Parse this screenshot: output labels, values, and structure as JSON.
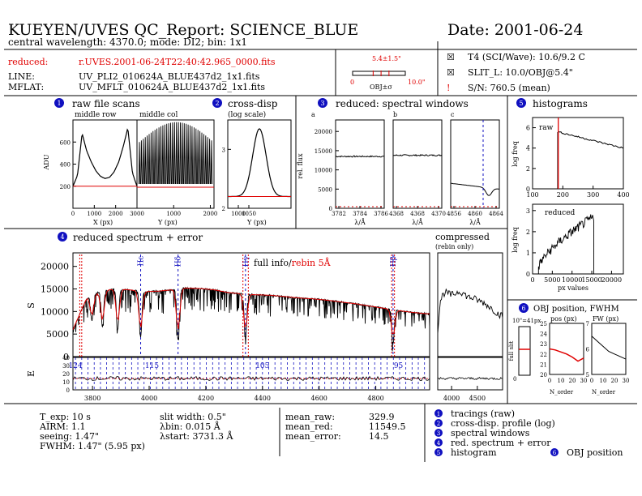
{
  "header": {
    "title": "KUEYEN/UVES QC_Report: SCIENCE_BLUE",
    "date": "Date: 2001-06-24",
    "subtitle": "central wavelength: 4370.0; mode: DI2; bin: 1x1"
  },
  "files": {
    "reduced_label": "reduced:",
    "reduced_value": "r.UVES.2001-06-24T22:40:42.965_0000.fits",
    "line_label": "LINE:",
    "line_value": "UV_PLI2_010624A_BLUE437d2_1x1.fits",
    "mflat_label": "MFLAT:",
    "mflat_value": "UV_MFLT_010624A_BLUE437d2_1x1.fits"
  },
  "slit_box": {
    "top": "5.4±1.5\"",
    "left": "0",
    "right": "10.0\"",
    "bottom": "OBJ±σ",
    "obj_position_fraction": 0.54,
    "obj_sigma_fraction": 0.15
  },
  "status": [
    {
      "mark": "☒",
      "text": "T4 (SCI/Wave): 10.6/9.2 C"
    },
    {
      "mark": "☒",
      "text": "SLIT_L: 10.0/OBJ@5.4\""
    },
    {
      "mark": "!",
      "text": "S/N: 760.5 (mean)"
    }
  ],
  "panels": {
    "p1": {
      "num": "1",
      "title": "raw file scans",
      "sub1": "middle row",
      "sub2": "middle col",
      "ylabel": "ADU",
      "xlabel1": "X (px)",
      "xlabel2": "Y (px)"
    },
    "p2": {
      "num": "2",
      "title": "cross-disp",
      "sub": "(log scale)",
      "xlabel": "Y (px)"
    },
    "p3": {
      "num": "3",
      "title": "reduced: spectral windows",
      "ylabel": "rel. flux",
      "xlabel": "λ/Å",
      "windows": [
        "a",
        "b",
        "c"
      ]
    },
    "p4": {
      "num": "4",
      "title": "reduced spectrum + error",
      "annotation_black": "full info/",
      "annotation_red": "rebin 5Å",
      "ylabel_top": "S",
      "ylabel_bottom": "E",
      "compressed": "compressed",
      "rebin_only": "(rebin only)"
    },
    "p5": {
      "num": "5",
      "title": "histograms",
      "raw_label": "raw",
      "reduced_label": "reduced",
      "ylabel": "log freq",
      "xlabel": "px values"
    },
    "p6": {
      "num": "6",
      "title": "OBJ position, FWHM",
      "pos_label": "pos (px)",
      "fw_label": "FW (px)",
      "full_slit": "full slit",
      "scale": "10\"=41px",
      "xlabel": "N_order"
    }
  },
  "bottom": {
    "col1": [
      "T_exp:  10 s",
      "AIRM:  1.1",
      "seeing: 1.47\"",
      "FWHM:  1.47\" (5.95 px)"
    ],
    "col2": [
      "slit width: 0.5\"",
      "λbin: 0.015 Å",
      "λstart: 3731.3 Å"
    ],
    "col3": [
      {
        "k": "mean_raw:",
        "v": "329.9"
      },
      {
        "k": "mean_red:",
        "v": "11549.5"
      },
      {
        "k": "mean_error:",
        "v": "14.5"
      }
    ],
    "legend": [
      {
        "num": "1",
        "text": "tracings (raw)"
      },
      {
        "num": "2",
        "text": "cross-disp. profile (log)"
      },
      {
        "num": "3",
        "text": "spectral windows"
      },
      {
        "num": "4",
        "text": "red. spectrum + error"
      },
      {
        "num": "5",
        "text": "histogram",
        "num2": "6",
        "text2": "OBJ position"
      }
    ]
  },
  "chart_data": [
    {
      "id": "raw-row-scan",
      "type": "line",
      "x": [
        0,
        150,
        300,
        450,
        600,
        750,
        900,
        1050,
        1200,
        1350,
        1500,
        1650,
        1800,
        1950,
        2100
      ],
      "y": [
        200,
        300,
        680,
        520,
        420,
        340,
        290,
        270,
        280,
        330,
        420,
        560,
        730,
        320,
        200
      ],
      "baseline": 200,
      "ylim": [
        0,
        800
      ],
      "yticks": [
        200,
        400,
        600
      ],
      "xticks": [
        0,
        1000,
        2000,
        3000
      ]
    },
    {
      "id": "raw-col-scan",
      "type": "line",
      "xticks": [
        1000,
        2000
      ],
      "ylim": [
        0,
        800
      ]
    },
    {
      "id": "cross-disp-profile",
      "type": "line",
      "x": [
        950,
        1000,
        1050,
        1080,
        1100,
        1120,
        1150,
        1200,
        1250
      ],
      "y": [
        2.2,
        2.4,
        2.8,
        3.2,
        3.35,
        3.2,
        2.8,
        2.4,
        2.2
      ],
      "baseline": 2.2,
      "ylim": [
        2,
        3.5
      ],
      "yticks": [
        2,
        3
      ],
      "xticks": [
        1000,
        1050
      ]
    },
    {
      "id": "window-a",
      "type": "line",
      "xticks": [
        "3782",
        "3784",
        "3786"
      ],
      "level": 13500,
      "ylim": [
        0,
        23000
      ],
      "yticks": [
        0,
        5000,
        10000,
        15000,
        20000
      ]
    },
    {
      "id": "window-b",
      "type": "line",
      "xticks": [
        "4368",
        "4368",
        "4370"
      ],
      "level": 13800,
      "ylim": [
        0,
        23000
      ]
    },
    {
      "id": "window-c",
      "type": "line",
      "xticks": [
        "4856",
        "4860",
        "4864"
      ],
      "level_start": 6500,
      "dip": 4000,
      "ylim": [
        0,
        23000
      ]
    },
    {
      "id": "reduced-spectrum",
      "type": "line",
      "x": [
        3731,
        3780,
        3830,
        3880,
        3930,
        3980,
        4030,
        4080,
        4130,
        4180,
        4230,
        4280,
        4330,
        4380,
        4430,
        4480,
        4530,
        4580,
        4630,
        4680,
        4730,
        4780,
        4830,
        4880,
        4930,
        4980
      ],
      "y": [
        6000,
        13000,
        14500,
        15000,
        14800,
        14400,
        14500,
        14800,
        15200,
        15100,
        14800,
        14200,
        13900,
        13700,
        13600,
        13300,
        13000,
        12800,
        12500,
        12100,
        11700,
        11200,
        10700,
        10200,
        9800,
        9500
      ],
      "ylim": [
        0,
        23000
      ],
      "xlim": [
        3731,
        4990
      ],
      "yticks": [
        0,
        5000,
        10000,
        15000,
        20000
      ],
      "xticks": [
        3800,
        4000,
        4200,
        4400,
        4600,
        4800
      ],
      "lines": [
        {
          "label": "Hε",
          "x": 3970
        },
        {
          "label": "Hδ",
          "x": 4102
        },
        {
          "label": "Hγ",
          "x": 4340
        },
        {
          "label": "Hβ",
          "x": 4861
        }
      ],
      "order_labels": [
        {
          "label": "124",
          "x": 3740
        },
        {
          "label": "115",
          "x": 4010
        },
        {
          "label": "105",
          "x": 4400
        },
        {
          "label": "95",
          "x": 4880
        }
      ],
      "error_yticks": [
        0,
        10,
        20,
        30,
        40
      ]
    },
    {
      "id": "compressed-spectrum",
      "type": "line",
      "xticks": [
        4000,
        4500
      ]
    },
    {
      "id": "hist-raw",
      "type": "area",
      "xticks": [
        100,
        200,
        300,
        400
      ],
      "yticks": [
        0,
        2,
        4,
        6
      ],
      "cut": 185
    },
    {
      "id": "hist-reduced",
      "type": "area",
      "xticks": [
        0,
        5000,
        10000,
        15000,
        20000
      ],
      "yticks": [
        0,
        1,
        2,
        3
      ]
    },
    {
      "id": "obj-position",
      "type": "line",
      "x": [
        0,
        5,
        10,
        15,
        20,
        25,
        30
      ],
      "y": [
        22.5,
        22.4,
        22.2,
        22.0,
        21.7,
        21.3,
        21.6
      ],
      "ylim": [
        20,
        25
      ],
      "yticks": [
        20,
        21,
        22,
        23,
        24,
        25
      ],
      "xticks": [
        0,
        10,
        20,
        30
      ]
    },
    {
      "id": "obj-fwhm",
      "type": "line",
      "x": [
        0,
        5,
        10,
        15,
        20,
        25,
        30
      ],
      "y": [
        6.5,
        6.3,
        6.1,
        5.9,
        5.8,
        5.7,
        5.6
      ],
      "ylim": [
        5,
        7
      ],
      "yticks": [
        5,
        6,
        7
      ],
      "xticks": [
        0,
        10,
        20,
        30
      ]
    }
  ]
}
